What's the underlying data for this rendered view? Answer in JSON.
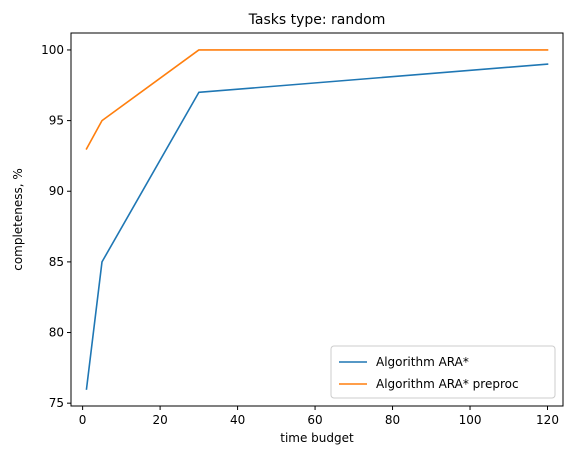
{
  "chart_data": {
    "type": "line",
    "title": "Tasks type: random",
    "xlabel": "time budget",
    "ylabel": "completeness, %",
    "xlim": [
      -3,
      124
    ],
    "ylim": [
      74.8,
      101.2
    ],
    "xticks": [
      0,
      20,
      40,
      60,
      80,
      100,
      120
    ],
    "yticks": [
      75,
      80,
      85,
      90,
      95,
      100
    ],
    "grid": false,
    "legend_position": "bottom-right",
    "series": [
      {
        "name": "Algorithm ARA*",
        "color": "#1f77b4",
        "x": [
          1,
          5,
          30,
          120
        ],
        "y": [
          76,
          85,
          97,
          99
        ]
      },
      {
        "name": "Algorithm ARA* preproc",
        "color": "#ff7f0e",
        "x": [
          1,
          5,
          30,
          120
        ],
        "y": [
          93,
          95,
          100,
          100
        ]
      }
    ]
  }
}
